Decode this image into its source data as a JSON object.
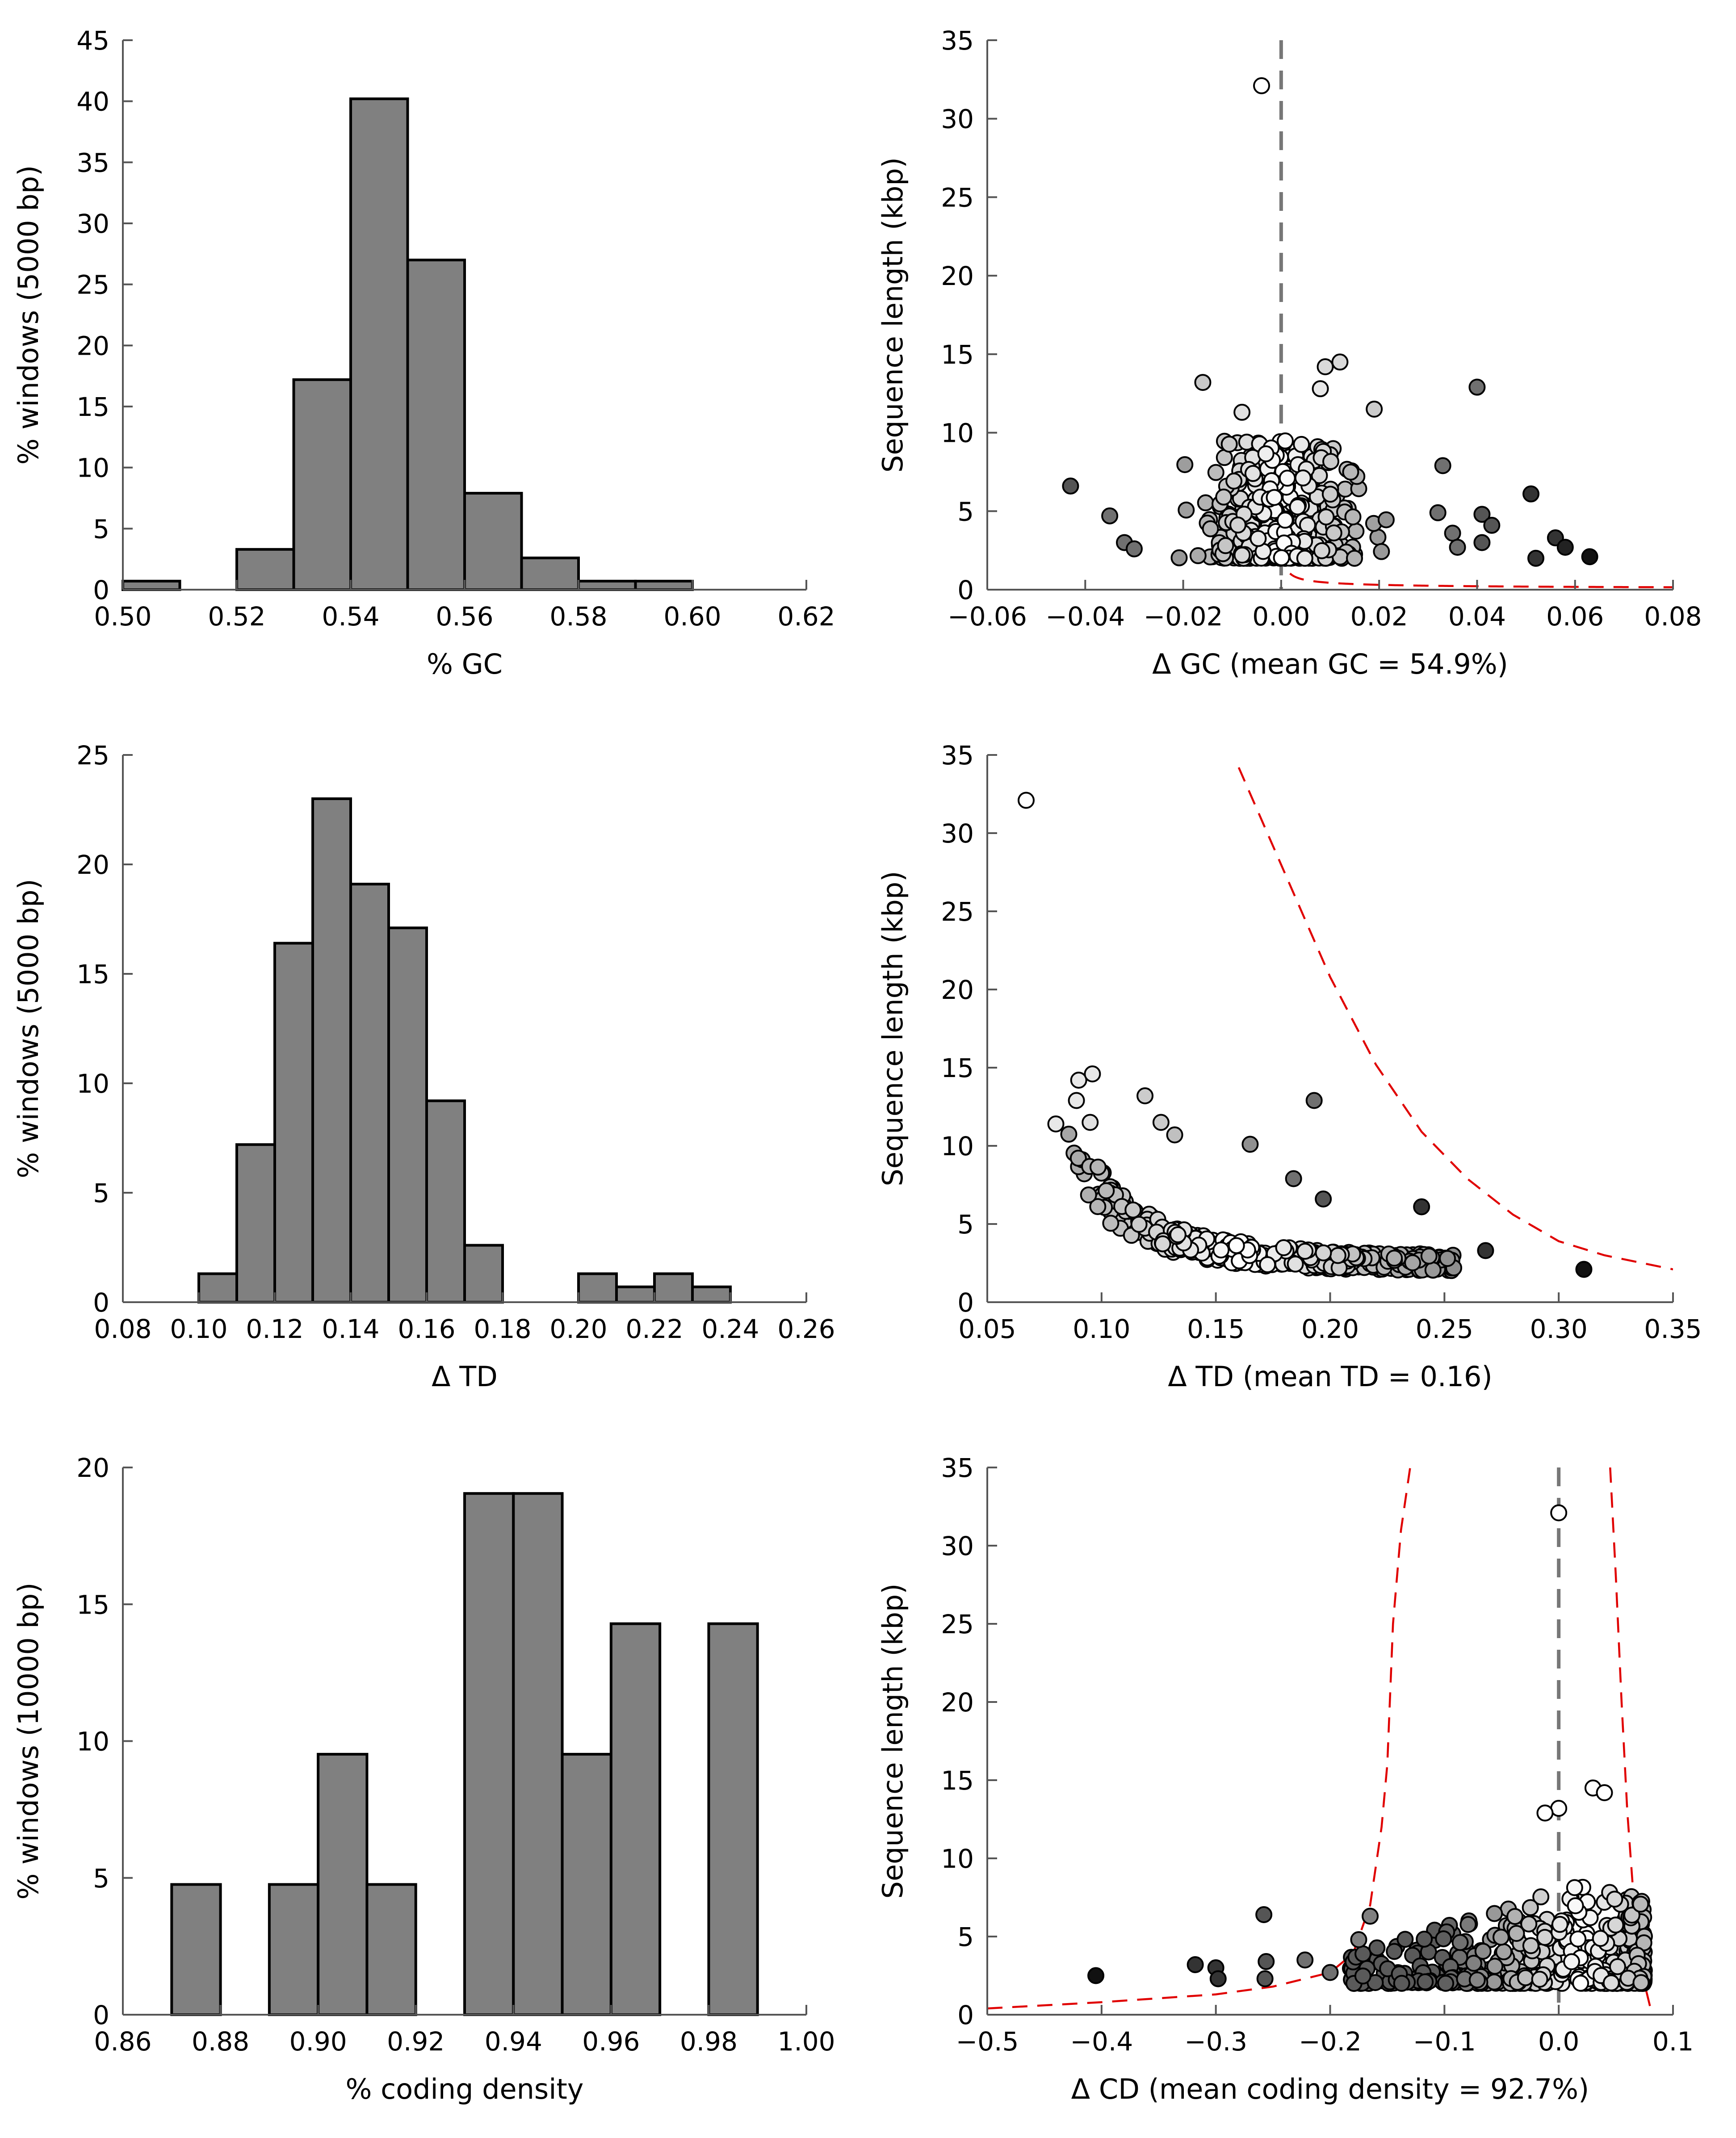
{
  "chart_data": [
    {
      "id": "hist-gc",
      "type": "bar",
      "xlabel": "% GC",
      "ylabel": "% windows (5000 bp)",
      "xlim": [
        0.5,
        0.62
      ],
      "ylim": [
        0,
        45
      ],
      "xticks": [
        0.5,
        0.52,
        0.54,
        0.56,
        0.58,
        0.6,
        0.62
      ],
      "xtick_labels": [
        "0.50",
        "0.52",
        "0.54",
        "0.56",
        "0.58",
        "0.60",
        "0.62"
      ],
      "yticks": [
        0,
        5,
        10,
        15,
        20,
        25,
        30,
        35,
        40,
        45
      ],
      "ytick_labels": [
        "0",
        "5",
        "10",
        "15",
        "20",
        "25",
        "30",
        "35",
        "40",
        "45"
      ],
      "bin_width": 0.01,
      "bins": [
        {
          "x": 0.5,
          "value": 0.7
        },
        {
          "x": 0.51,
          "value": 0
        },
        {
          "x": 0.52,
          "value": 3.3
        },
        {
          "x": 0.53,
          "value": 17.2
        },
        {
          "x": 0.54,
          "value": 40.2
        },
        {
          "x": 0.55,
          "value": 27.0
        },
        {
          "x": 0.56,
          "value": 7.9
        },
        {
          "x": 0.57,
          "value": 2.6
        },
        {
          "x": 0.58,
          "value": 0.7
        },
        {
          "x": 0.59,
          "value": 0.7
        }
      ]
    },
    {
      "id": "scatter-gc",
      "type": "scatter",
      "xlabel": "Δ GC (mean GC = 54.9%)",
      "ylabel": "Sequence length (kbp)",
      "xlim": [
        -0.06,
        0.08
      ],
      "ylim": [
        0,
        35
      ],
      "xticks": [
        -0.06,
        -0.04,
        -0.02,
        0.0,
        0.02,
        0.04,
        0.06,
        0.08
      ],
      "xtick_labels": [
        "−0.06",
        "−0.04",
        "−0.02",
        "0.00",
        "0.02",
        "0.04",
        "0.06",
        "0.08"
      ],
      "yticks": [
        0,
        5,
        10,
        15,
        20,
        25,
        30,
        35
      ],
      "ytick_labels": [
        "0",
        "5",
        "10",
        "15",
        "20",
        "25",
        "30",
        "35"
      ],
      "vline": 0.0,
      "boundary": {
        "k": 0.06,
        "x0": 0,
        "sides": [
          1
        ]
      },
      "highlight_points": [
        {
          "x": -0.004,
          "y": 32.1,
          "fill": "#ffffff"
        },
        {
          "x": -0.043,
          "y": 6.6,
          "fill": "#555555"
        },
        {
          "x": -0.035,
          "y": 4.7,
          "fill": "#707070"
        },
        {
          "x": -0.032,
          "y": 3.0,
          "fill": "#707070"
        },
        {
          "x": -0.03,
          "y": 2.6,
          "fill": "#707070"
        },
        {
          "x": -0.016,
          "y": 13.2,
          "fill": "#c8c8c8"
        },
        {
          "x": -0.008,
          "y": 11.3,
          "fill": "#e0e0e0"
        },
        {
          "x": 0.009,
          "y": 14.2,
          "fill": "#d9d9d9"
        },
        {
          "x": 0.012,
          "y": 14.5,
          "fill": "#d9d9d9"
        },
        {
          "x": 0.008,
          "y": 12.8,
          "fill": "#e8e8e8"
        },
        {
          "x": 0.019,
          "y": 11.5,
          "fill": "#cccccc"
        },
        {
          "x": 0.04,
          "y": 12.9,
          "fill": "#707070"
        },
        {
          "x": 0.033,
          "y": 7.9,
          "fill": "#707070"
        },
        {
          "x": 0.032,
          "y": 4.9,
          "fill": "#707070"
        },
        {
          "x": 0.041,
          "y": 4.8,
          "fill": "#555555"
        },
        {
          "x": 0.043,
          "y": 4.1,
          "fill": "#555555"
        },
        {
          "x": 0.035,
          "y": 3.6,
          "fill": "#707070"
        },
        {
          "x": 0.036,
          "y": 2.7,
          "fill": "#707070"
        },
        {
          "x": 0.041,
          "y": 3.0,
          "fill": "#555555"
        },
        {
          "x": 0.051,
          "y": 6.1,
          "fill": "#333333"
        },
        {
          "x": 0.052,
          "y": 2.0,
          "fill": "#333333"
        },
        {
          "x": 0.056,
          "y": 3.3,
          "fill": "#333333"
        },
        {
          "x": 0.058,
          "y": 2.7,
          "fill": "#222222"
        },
        {
          "x": 0.063,
          "y": 2.1,
          "fill": "#111111"
        }
      ],
      "cloud": {
        "x_center": 0.0,
        "x_spread": 0.012,
        "y_min": 2.0,
        "y_mode": 3.0,
        "count": 420,
        "seed": 11
      }
    },
    {
      "id": "hist-td",
      "type": "bar",
      "xlabel": "Δ TD",
      "ylabel": "% windows (5000 bp)",
      "xlim": [
        0.08,
        0.26
      ],
      "ylim": [
        0,
        25
      ],
      "xticks": [
        0.08,
        0.1,
        0.12,
        0.14,
        0.16,
        0.18,
        0.2,
        0.22,
        0.24,
        0.26
      ],
      "xtick_labels": [
        "0.08",
        "0.10",
        "0.12",
        "0.14",
        "0.16",
        "0.18",
        "0.20",
        "0.22",
        "0.24",
        "0.26"
      ],
      "yticks": [
        0,
        5,
        10,
        15,
        20,
        25
      ],
      "ytick_labels": [
        "0",
        "5",
        "10",
        "15",
        "20",
        "25"
      ],
      "bin_width": 0.01,
      "bins": [
        {
          "x": 0.1,
          "value": 1.3
        },
        {
          "x": 0.11,
          "value": 7.2
        },
        {
          "x": 0.12,
          "value": 16.4
        },
        {
          "x": 0.13,
          "value": 23.0
        },
        {
          "x": 0.14,
          "value": 19.1
        },
        {
          "x": 0.15,
          "value": 17.1
        },
        {
          "x": 0.16,
          "value": 9.2
        },
        {
          "x": 0.17,
          "value": 2.6
        },
        {
          "x": 0.18,
          "value": 0
        },
        {
          "x": 0.19,
          "value": 0
        },
        {
          "x": 0.2,
          "value": 1.3
        },
        {
          "x": 0.21,
          "value": 0.7
        },
        {
          "x": 0.22,
          "value": 1.3
        },
        {
          "x": 0.23,
          "value": 0.7
        }
      ]
    },
    {
      "id": "scatter-td",
      "type": "scatter",
      "xlabel": "Δ TD (mean TD = 0.16)",
      "ylabel": "Sequence length (kbp)",
      "xlim": [
        0.05,
        0.35
      ],
      "ylim": [
        0,
        35
      ],
      "xticks": [
        0.05,
        0.1,
        0.15,
        0.2,
        0.25,
        0.3,
        0.35
      ],
      "xtick_labels": [
        "0.05",
        "0.10",
        "0.15",
        "0.20",
        "0.25",
        "0.30",
        "0.35"
      ],
      "yticks": [
        0,
        5,
        10,
        15,
        20,
        25,
        30,
        35
      ],
      "ytick_labels": [
        "0",
        "5",
        "10",
        "15",
        "20",
        "25",
        "30",
        "35"
      ],
      "boundary_curve": [
        [
          0.16,
          34.2
        ],
        [
          0.18,
          27.5
        ],
        [
          0.2,
          20.8
        ],
        [
          0.22,
          15.2
        ],
        [
          0.24,
          10.9
        ],
        [
          0.26,
          7.9
        ],
        [
          0.28,
          5.6
        ],
        [
          0.3,
          3.9
        ],
        [
          0.32,
          3.0
        ],
        [
          0.35,
          2.1
        ]
      ],
      "highlight_points": [
        {
          "x": 0.067,
          "y": 32.1,
          "fill": "#ffffff"
        },
        {
          "x": 0.09,
          "y": 14.2,
          "fill": "#e8e8e8"
        },
        {
          "x": 0.096,
          "y": 14.6,
          "fill": "#e8e8e8"
        },
        {
          "x": 0.089,
          "y": 12.9,
          "fill": "#e8e8e8"
        },
        {
          "x": 0.08,
          "y": 11.4,
          "fill": "#e8e8e8"
        },
        {
          "x": 0.095,
          "y": 11.5,
          "fill": "#e0e0e0"
        },
        {
          "x": 0.119,
          "y": 13.2,
          "fill": "#cccccc"
        },
        {
          "x": 0.126,
          "y": 11.5,
          "fill": "#cccccc"
        },
        {
          "x": 0.132,
          "y": 10.7,
          "fill": "#c0c0c0"
        },
        {
          "x": 0.165,
          "y": 10.1,
          "fill": "#909090"
        },
        {
          "x": 0.193,
          "y": 12.9,
          "fill": "#707070"
        },
        {
          "x": 0.184,
          "y": 7.9,
          "fill": "#707070"
        },
        {
          "x": 0.197,
          "y": 6.6,
          "fill": "#555555"
        },
        {
          "x": 0.24,
          "y": 6.1,
          "fill": "#333333"
        },
        {
          "x": 0.268,
          "y": 3.3,
          "fill": "#333333"
        },
        {
          "x": 0.311,
          "y": 2.1,
          "fill": "#111111"
        }
      ],
      "cloud": {
        "x_center": 0.16,
        "x_spread": 0.05,
        "y_min": 2.0,
        "y_mode": 3.0,
        "count": 420,
        "seed": 23
      }
    },
    {
      "id": "hist-cd",
      "type": "bar",
      "xlabel": "% coding density",
      "ylabel": "% windows (10000 bp)",
      "xlim": [
        0.86,
        1.0
      ],
      "ylim": [
        0,
        20
      ],
      "xticks": [
        0.86,
        0.88,
        0.9,
        0.92,
        0.94,
        0.96,
        0.98,
        1.0
      ],
      "xtick_labels": [
        "0.86",
        "0.88",
        "0.90",
        "0.92",
        "0.94",
        "0.96",
        "0.98",
        "1.00"
      ],
      "yticks": [
        0,
        5,
        10,
        15,
        20
      ],
      "ytick_labels": [
        "0",
        "5",
        "10",
        "15",
        "20"
      ],
      "bin_width": 0.01,
      "bins": [
        {
          "x": 0.87,
          "value": 4.76
        },
        {
          "x": 0.88,
          "value": 0
        },
        {
          "x": 0.89,
          "value": 4.76
        },
        {
          "x": 0.9,
          "value": 9.52
        },
        {
          "x": 0.91,
          "value": 4.76
        },
        {
          "x": 0.92,
          "value": 0
        },
        {
          "x": 0.93,
          "value": 19.05
        },
        {
          "x": 0.94,
          "value": 19.05
        },
        {
          "x": 0.95,
          "value": 9.52
        },
        {
          "x": 0.96,
          "value": 14.29
        },
        {
          "x": 0.97,
          "value": 0
        },
        {
          "x": 0.98,
          "value": 14.29
        }
      ]
    },
    {
      "id": "scatter-cd",
      "type": "scatter",
      "xlabel": "Δ CD (mean coding density = 92.7%)",
      "ylabel": "Sequence length (kbp)",
      "xlim": [
        -0.5,
        0.1
      ],
      "ylim": [
        0,
        35
      ],
      "xticks": [
        -0.5,
        -0.4,
        -0.3,
        -0.2,
        -0.1,
        0.0,
        0.1
      ],
      "xtick_labels": [
        "−0.5",
        "−0.4",
        "−0.3",
        "−0.2",
        "−0.1",
        "0.0",
        "0.1"
      ],
      "yticks": [
        0,
        5,
        10,
        15,
        20,
        25,
        30,
        35
      ],
      "ytick_labels": [
        "0",
        "5",
        "10",
        "15",
        "20",
        "25",
        "30",
        "35"
      ],
      "vline": 0.0,
      "boundary_curve_left": [
        [
          -0.5,
          0.4
        ],
        [
          -0.4,
          0.8
        ],
        [
          -0.3,
          1.3
        ],
        [
          -0.25,
          1.8
        ],
        [
          -0.2,
          2.7
        ],
        [
          -0.18,
          3.9
        ],
        [
          -0.165,
          7.0
        ],
        [
          -0.155,
          12.0
        ],
        [
          -0.15,
          16.0
        ],
        [
          -0.145,
          25.0
        ],
        [
          -0.138,
          31.0
        ],
        [
          -0.13,
          35.0
        ]
      ],
      "boundary_curve_right": [
        [
          0.045,
          35.0
        ],
        [
          0.05,
          28.0
        ],
        [
          0.055,
          20.0
        ],
        [
          0.06,
          13.0
        ],
        [
          0.065,
          8.0
        ],
        [
          0.07,
          4.5
        ],
        [
          0.075,
          2.0
        ],
        [
          0.08,
          0.5
        ]
      ],
      "highlight_points": [
        {
          "x": 0.0,
          "y": 32.1,
          "fill": "#ffffff"
        },
        {
          "x": 0.03,
          "y": 14.5,
          "fill": "#ffffff"
        },
        {
          "x": 0.04,
          "y": 14.2,
          "fill": "#ffffff"
        },
        {
          "x": 0.0,
          "y": 13.2,
          "fill": "#ffffff"
        },
        {
          "x": -0.012,
          "y": 12.9,
          "fill": "#ffffff"
        },
        {
          "x": -0.405,
          "y": 2.5,
          "fill": "#111111"
        },
        {
          "x": -0.318,
          "y": 3.2,
          "fill": "#333333"
        },
        {
          "x": -0.3,
          "y": 3.0,
          "fill": "#333333"
        },
        {
          "x": -0.298,
          "y": 2.3,
          "fill": "#333333"
        },
        {
          "x": -0.258,
          "y": 6.4,
          "fill": "#555555"
        },
        {
          "x": -0.256,
          "y": 3.4,
          "fill": "#555555"
        },
        {
          "x": -0.257,
          "y": 2.3,
          "fill": "#555555"
        },
        {
          "x": -0.222,
          "y": 3.5,
          "fill": "#707070"
        },
        {
          "x": -0.2,
          "y": 2.7,
          "fill": "#707070"
        },
        {
          "x": -0.175,
          "y": 4.8,
          "fill": "#808080"
        },
        {
          "x": -0.165,
          "y": 6.3,
          "fill": "#808080"
        }
      ],
      "cloud": {
        "x_center": 0.02,
        "x_spread": 0.045,
        "y_min": 2.0,
        "y_mode": 3.0,
        "count": 420,
        "seed": 37
      }
    }
  ]
}
